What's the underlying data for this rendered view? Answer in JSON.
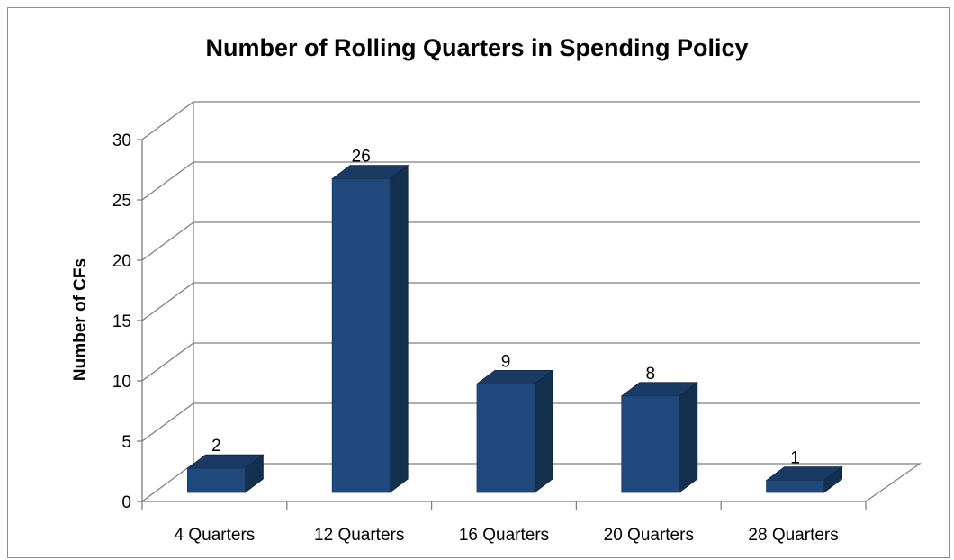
{
  "chart_data": {
    "type": "bar",
    "title": "Number of Rolling Quarters in Spending Policy",
    "xlabel": "",
    "ylabel": "Number of CFs",
    "categories": [
      "4 Quarters",
      "12 Quarters",
      "16 Quarters",
      "20 Quarters",
      "28 Quarters"
    ],
    "values": [
      2,
      26,
      9,
      8,
      1
    ],
    "ylim": [
      0,
      30
    ],
    "yticks": [
      0,
      5,
      10,
      15,
      20,
      25,
      30
    ],
    "grid": true,
    "style": "3d-column",
    "legend": "none",
    "bar_color": "#1F497D",
    "bar_top_color": "#1A3A63",
    "bar_side_color": "#14304F",
    "grid_color": "#7F7F7F"
  }
}
